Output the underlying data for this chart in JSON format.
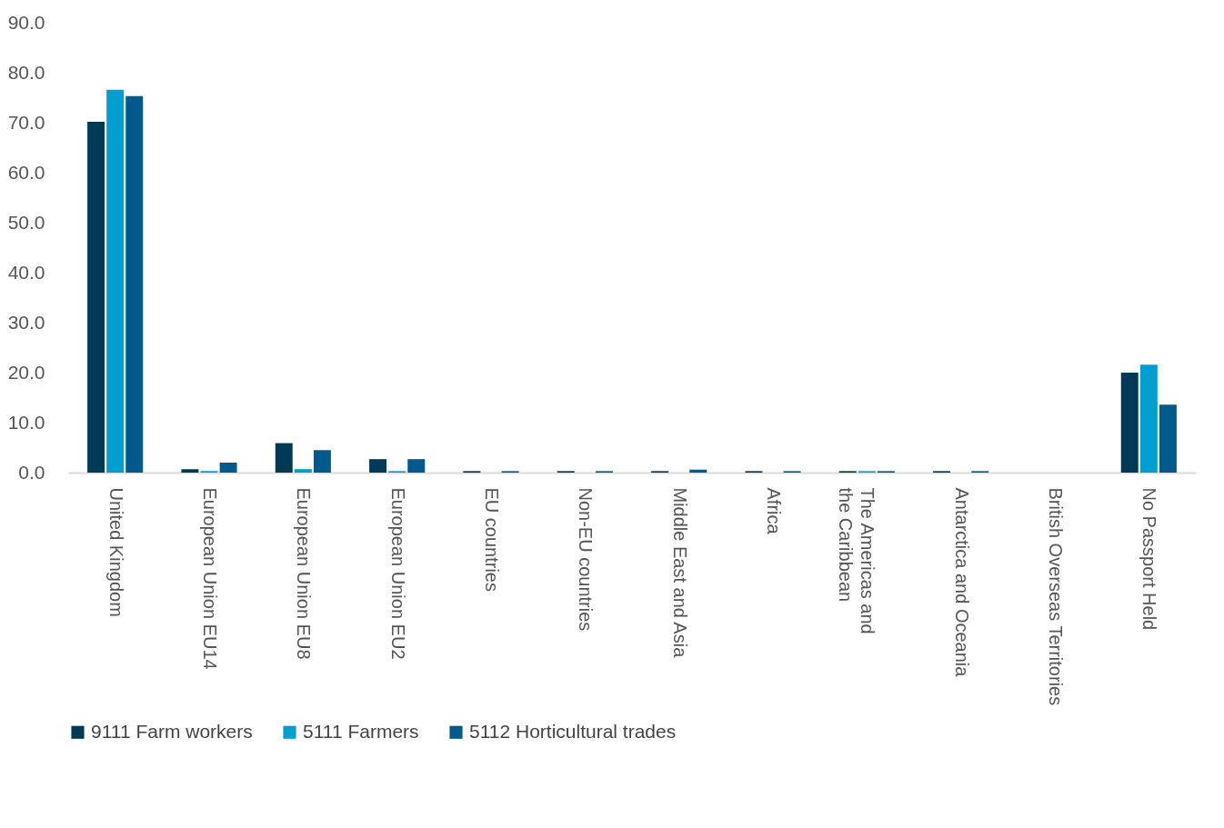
{
  "chart_data": {
    "type": "bar",
    "categories": [
      "United Kingdom",
      "European Union EU14",
      "European Union EU8",
      "European Union EU2",
      "EU countries",
      "Non-EU countries",
      "Middle East and Asia",
      "Africa",
      "The Americas and the Caribbean",
      "Antarctica and Oceania",
      "British Overseas Territories",
      "No Passport Held"
    ],
    "series": [
      {
        "name": "9111 Farm workers",
        "color": "#003a57",
        "values": [
          70.2,
          0.7,
          5.9,
          2.7,
          0.3,
          0.3,
          0.3,
          0.3,
          0.3,
          0.3,
          null,
          20.0
        ]
      },
      {
        "name": "5111 Farmers",
        "color": "#009fcf",
        "values": [
          76.6,
          0.3,
          0.7,
          0.3,
          null,
          null,
          null,
          null,
          0.3,
          null,
          null,
          21.6
        ]
      },
      {
        "name": "5112 Horticultural trades",
        "color": "#005a8c",
        "values": [
          75.3,
          2.0,
          4.5,
          2.7,
          0.3,
          0.3,
          0.6,
          0.3,
          0.3,
          0.3,
          null,
          13.6
        ]
      }
    ],
    "ylim": [
      0,
      90
    ],
    "yticks": [
      {
        "value": 0,
        "label": "0.0"
      },
      {
        "value": 10,
        "label": "10.0"
      },
      {
        "value": 20,
        "label": "20.0"
      },
      {
        "value": 30,
        "label": "30.0"
      },
      {
        "value": 40,
        "label": "40.0"
      },
      {
        "value": 50,
        "label": "50.0"
      },
      {
        "value": 60,
        "label": "60.0"
      },
      {
        "value": 70,
        "label": "70.0"
      },
      {
        "value": 80,
        "label": "80.0"
      },
      {
        "value": 90,
        "label": "90.0"
      }
    ],
    "grid": false,
    "legend": "bottom"
  }
}
